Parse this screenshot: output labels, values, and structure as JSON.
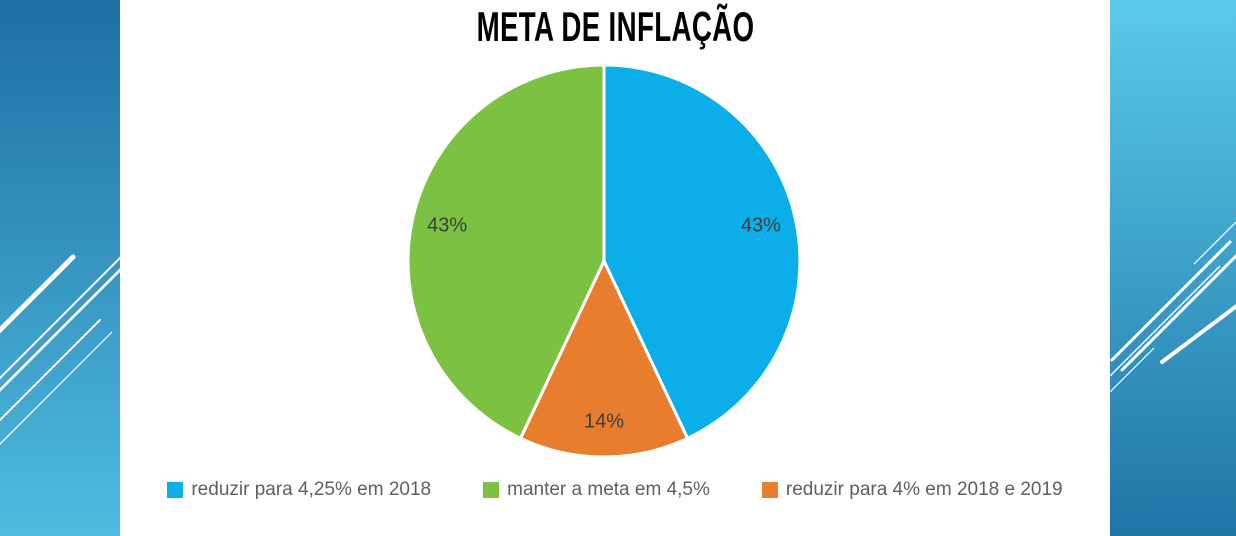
{
  "slide": {
    "title": "META DE INFLAÇÃO"
  },
  "chart_data": {
    "type": "pie",
    "title": "META DE INFLAÇÃO",
    "segments": [
      {
        "label": "reduzir para 4,25% em 2018",
        "value": 43,
        "display": "43%",
        "color": "#0BAEE8"
      },
      {
        "label": "manter a meta em 4,5%",
        "value": 43,
        "display": "43%",
        "color": "#7CC142"
      },
      {
        "label": "reduzir para 4% em 2018 e 2019",
        "value": 14,
        "display": "14%",
        "color": "#E87D2E"
      }
    ],
    "total": 100,
    "draw_order_clockwise_from_top": [
      0,
      2,
      1
    ],
    "start_angle_deg": 0,
    "data_labels": "percent",
    "legend_position": "bottom",
    "grid": false
  },
  "colors": {
    "slide_background": "#FFFFFF",
    "title_color": "#000000",
    "data_label_color": "#3D3D3D",
    "legend_text_color": "#5F5F5F",
    "slice_border": "#FFFFFF",
    "left_panel_gradient_top": "#1E6FA4",
    "left_panel_gradient_bottom": "#4FBCE0",
    "right_panel_gradient_top": "#5ACAEA",
    "right_panel_gradient_bottom": "#1F74A6",
    "decor_line_color": "#FFFFFF"
  }
}
